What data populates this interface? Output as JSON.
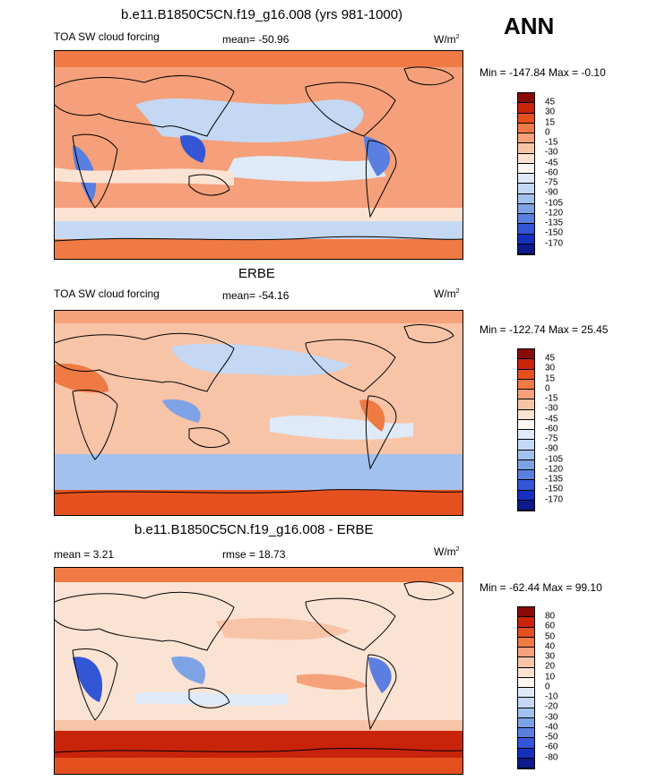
{
  "header": {
    "season": "ANN"
  },
  "panels": [
    {
      "title": "b.e11.B1850C5CN.f19_g16.008 (yrs 981-1000)",
      "left_label": "TOA SW cloud forcing",
      "center_label": "mean= -50.96",
      "units": "W/m",
      "units_exp": "2",
      "minmax": "Min = -147.84 Max =  -0.10",
      "legend_labels": [
        "45",
        "30",
        "15",
        "0",
        "-15",
        "-30",
        "-45",
        "-60",
        "-75",
        "-90",
        "-105",
        "-120",
        "-135",
        "-150",
        "-170"
      ]
    },
    {
      "title": "ERBE",
      "left_label": "TOA SW cloud forcing",
      "center_label": "mean= -54.16",
      "units": "W/m",
      "units_exp": "2",
      "minmax": "Min = -122.74 Max =  25.45",
      "legend_labels": [
        "45",
        "30",
        "15",
        "0",
        "-15",
        "-30",
        "-45",
        "-60",
        "-75",
        "-90",
        "-105",
        "-120",
        "-135",
        "-150",
        "-170"
      ]
    },
    {
      "title": "b.e11.B1850C5CN.f19_g16.008 - ERBE",
      "left_label": "mean =   3.21",
      "center_label": "rmse =  18.73",
      "units": "W/m",
      "units_exp": "2",
      "minmax": "Min = -62.44 Max =  99.10",
      "legend_labels": [
        "80",
        "60",
        "50",
        "40",
        "30",
        "20",
        "10",
        "0",
        "-10",
        "-20",
        "-30",
        "-40",
        "-50",
        "-60",
        "-80"
      ]
    }
  ],
  "colors": {
    "legend_fills": [
      "#8a0a0a",
      "#c8240a",
      "#e5501f",
      "#f07a44",
      "#f5a17a",
      "#f8c4a8",
      "#fbe3d4",
      "#fdf7f1",
      "#dfeaf8",
      "#c4d8f3",
      "#a3c1ee",
      "#7ea2e6",
      "#5a7fe0",
      "#3356d6",
      "#1530bd",
      "#0c1a8a"
    ],
    "ocean_warm": "#f5a07a",
    "ocean_light": "#fbe3d4",
    "ocean_cool": "#c4d8f3",
    "ocean_blue": "#7ea2e6"
  }
}
